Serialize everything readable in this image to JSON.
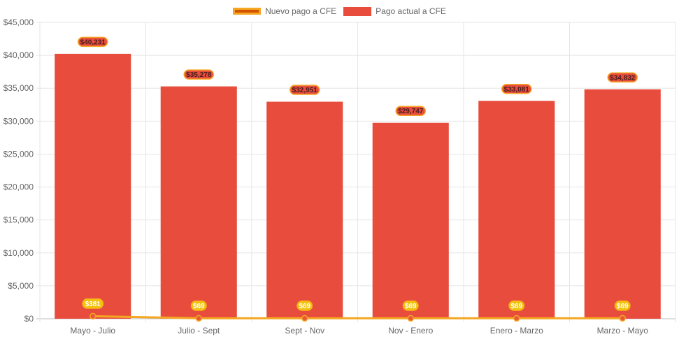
{
  "chart_data": {
    "type": "bar",
    "categories": [
      "Mayo - Julio",
      "Julio - Sept",
      "Sept - Nov",
      "Nov - Enero",
      "Enero - Marzo",
      "Marzo - Mayo"
    ],
    "series": [
      {
        "name": "Nuevo pago a CFE",
        "type": "line",
        "values": [
          381,
          69,
          69,
          69,
          69,
          69
        ],
        "labels": [
          "$381",
          "$69",
          "$69",
          "$69",
          "$69",
          "$69"
        ],
        "color": "#f5a623",
        "fill": "#d35400"
      },
      {
        "name": "Pago actual a CFE",
        "type": "bar",
        "values": [
          40231,
          35278,
          32951,
          29747,
          33081,
          34832
        ],
        "labels": [
          "$40,231",
          "$35,278",
          "$32,951",
          "$29,747",
          "$33,081",
          "$34,832"
        ],
        "color": "#e74c3c"
      }
    ],
    "ylim": [
      0,
      45000
    ],
    "yticks": [
      0,
      5000,
      10000,
      15000,
      20000,
      25000,
      30000,
      35000,
      40000,
      45000
    ],
    "ytick_labels": [
      "$0",
      "$5,000",
      "$10,000",
      "$15,000",
      "$20,000",
      "$25,000",
      "$30,000",
      "$35,000",
      "$40,000",
      "$45,000"
    ],
    "grid": true,
    "legend_position": "top"
  },
  "legend": {
    "line_label": "Nuevo pago a CFE",
    "bar_label": "Pago actual a CFE"
  }
}
